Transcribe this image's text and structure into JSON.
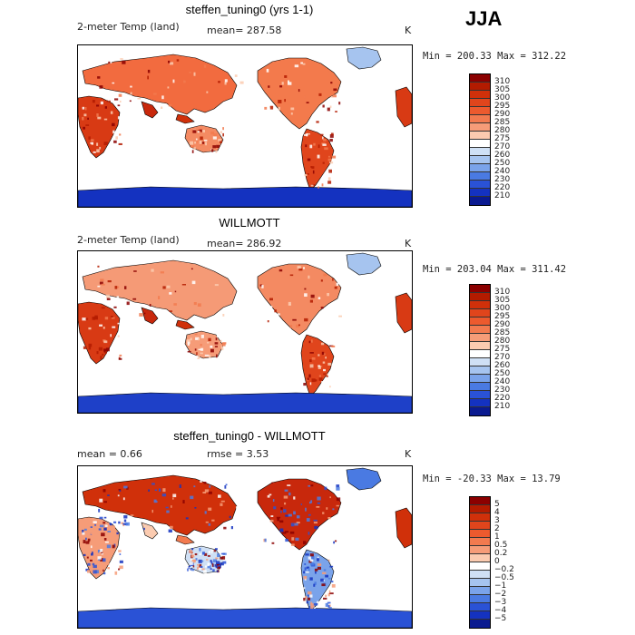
{
  "season": "JJA",
  "panels": [
    {
      "title": "steffen_tuning0 (yrs 1-1)",
      "left_label": "2-meter Temp (land)",
      "mean_label": "mean= 287.58",
      "units": "K",
      "minmax": "Min = 200.33 Max = 312.22",
      "colorbar": {
        "labels": [
          "310",
          "305",
          "300",
          "295",
          "290",
          "285",
          "280",
          "275",
          "270",
          "260",
          "250",
          "240",
          "230",
          "220",
          "210"
        ],
        "colors": [
          "#8b0000",
          "#b31b00",
          "#d0300a",
          "#e0451c",
          "#ec5a2e",
          "#f27a4f",
          "#f69c78",
          "#fbcbb0",
          "#ffffff",
          "#cfe0f5",
          "#a6c4ef",
          "#7aa3ea",
          "#4a7ae2",
          "#2a52d6",
          "#1432c0",
          "#0a1a90"
        ]
      },
      "chart_data": {
        "type": "heatmap",
        "title": "steffen_tuning0 (yrs 1-1)",
        "variable": "2-meter Temp (land)",
        "mean": 287.58,
        "min": 200.33,
        "max": 312.22,
        "units": "K",
        "levels": [
          210,
          220,
          230,
          240,
          250,
          260,
          270,
          275,
          280,
          285,
          290,
          295,
          300,
          305,
          310
        ]
      }
    },
    {
      "title": "WILLMOTT",
      "left_label": "2-meter Temp (land)",
      "mean_label": "mean= 286.92",
      "units": "K",
      "minmax": "Min = 203.04 Max = 311.42",
      "colorbar": {
        "labels": [
          "310",
          "305",
          "300",
          "295",
          "290",
          "285",
          "280",
          "275",
          "270",
          "260",
          "250",
          "240",
          "230",
          "220",
          "210"
        ],
        "colors": [
          "#8b0000",
          "#b31b00",
          "#d0300a",
          "#e0451c",
          "#ec5a2e",
          "#f27a4f",
          "#f69c78",
          "#fbcbb0",
          "#ffffff",
          "#cfe0f5",
          "#a6c4ef",
          "#7aa3ea",
          "#4a7ae2",
          "#2a52d6",
          "#1432c0",
          "#0a1a90"
        ]
      },
      "chart_data": {
        "type": "heatmap",
        "title": "WILLMOTT",
        "variable": "2-meter Temp (land)",
        "mean": 286.92,
        "min": 203.04,
        "max": 311.42,
        "units": "K",
        "levels": [
          210,
          220,
          230,
          240,
          250,
          260,
          270,
          275,
          280,
          285,
          290,
          295,
          300,
          305,
          310
        ]
      }
    },
    {
      "title": "steffen_tuning0 - WILLMOTT",
      "left_label": "mean =    0.66",
      "mean_label": "rmse =    3.53",
      "units": "K",
      "minmax": "Min = -20.33 Max =  13.79",
      "colorbar": {
        "labels": [
          "5",
          "4",
          "3",
          "2",
          "1",
          "0.5",
          "0.2",
          "0",
          "−0.2",
          "−0.5",
          "−1",
          "−2",
          "−3",
          "−4",
          "−5"
        ],
        "colors": [
          "#8b0000",
          "#b31b00",
          "#d0300a",
          "#e0451c",
          "#ec5a2e",
          "#f27a4f",
          "#f69c78",
          "#fbcbb0",
          "#ffffff",
          "#cfe0f5",
          "#a6c4ef",
          "#7aa3ea",
          "#4a7ae2",
          "#2a52d6",
          "#1432c0",
          "#0a1a90"
        ]
      },
      "chart_data": {
        "type": "heatmap",
        "title": "steffen_tuning0 - WILLMOTT",
        "mean": 0.66,
        "rmse": 3.53,
        "min": -20.33,
        "max": 13.79,
        "units": "K",
        "levels": [
          -5,
          -4,
          -3,
          -2,
          -1,
          -0.5,
          -0.2,
          0,
          0.2,
          0.5,
          1,
          2,
          3,
          4,
          5
        ]
      }
    }
  ]
}
